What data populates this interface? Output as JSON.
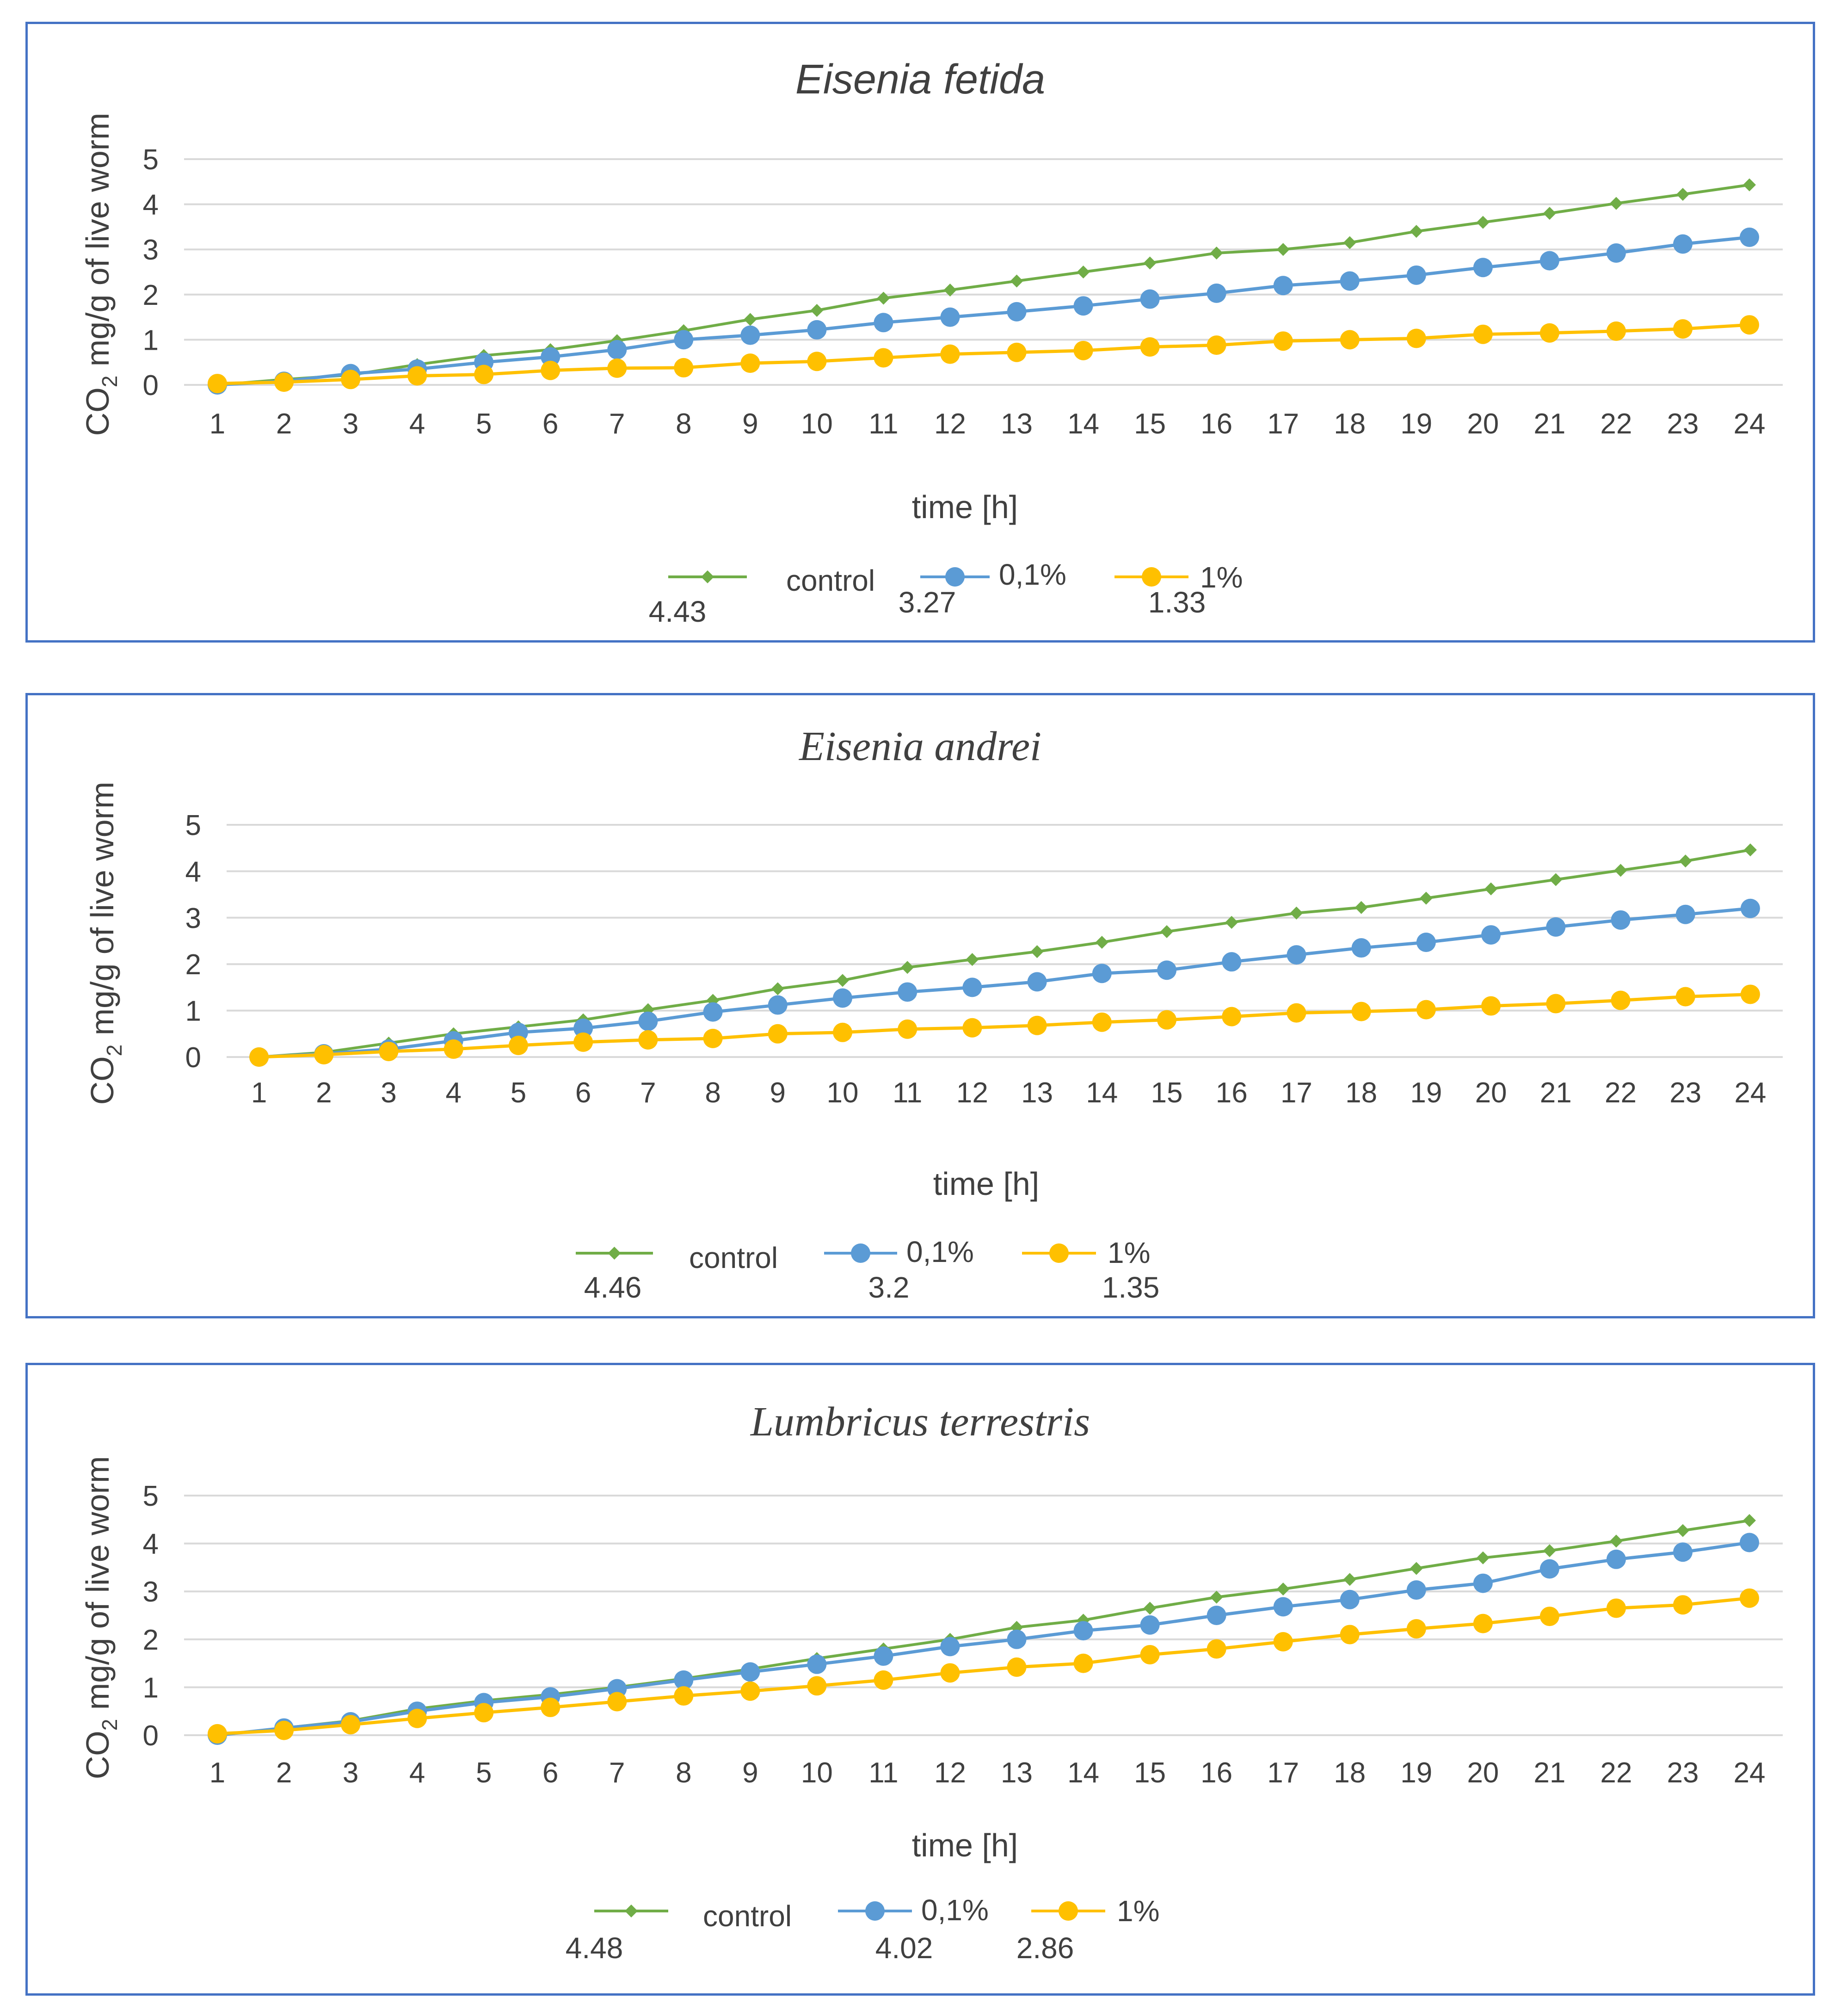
{
  "colors": {
    "control": "#70ad47",
    "c01": "#5b9bd5",
    "c1": "#ffc000",
    "border": "#4472c4"
  },
  "chart_data": [
    {
      "type": "line",
      "title": "Eisenia fetida",
      "xlabel": "time [h]",
      "ylabel_main": "CO",
      "ylabel_sub": "2",
      "ylabel_rest": " mg/g of live worm",
      "ylim": [
        0,
        5
      ],
      "yticks": [
        "0",
        "1",
        "2",
        "3",
        "4",
        "5"
      ],
      "categories": [
        "1",
        "2",
        "3",
        "4",
        "5",
        "6",
        "7",
        "8",
        "9",
        "10",
        "11",
        "12",
        "13",
        "14",
        "15",
        "16",
        "17",
        "18",
        "19",
        "20",
        "21",
        "22",
        "23",
        "24"
      ],
      "series": [
        {
          "name": "control",
          "final_value_label": "4.43",
          "values": [
            0,
            0.12,
            0.22,
            0.45,
            0.65,
            0.78,
            0.98,
            1.2,
            1.45,
            1.65,
            1.92,
            2.1,
            2.3,
            2.5,
            2.7,
            2.92,
            3.0,
            3.15,
            3.4,
            3.6,
            3.8,
            4.02,
            4.22,
            4.43
          ]
        },
        {
          "name": "0,1%",
          "final_value_label": "3.27",
          "values": [
            0,
            0.08,
            0.25,
            0.35,
            0.5,
            0.62,
            0.78,
            1.0,
            1.1,
            1.22,
            1.38,
            1.5,
            1.62,
            1.75,
            1.9,
            2.03,
            2.2,
            2.3,
            2.43,
            2.6,
            2.75,
            2.92,
            3.12,
            3.27
          ]
        },
        {
          "name": "1%",
          "final_value_label": "1.33",
          "values": [
            0.03,
            0.06,
            0.12,
            0.2,
            0.23,
            0.32,
            0.37,
            0.38,
            0.48,
            0.52,
            0.6,
            0.68,
            0.72,
            0.76,
            0.84,
            0.88,
            0.97,
            1.0,
            1.03,
            1.12,
            1.15,
            1.19,
            1.24,
            1.33
          ]
        }
      ]
    },
    {
      "type": "line",
      "title": "Eisenia andrei",
      "xlabel": "time [h]",
      "ylabel_main": "CO",
      "ylabel_sub": "2",
      "ylabel_rest": " mg/g of live worm",
      "ylim": [
        0,
        5
      ],
      "yticks": [
        "0",
        "1",
        "2",
        "3",
        "4",
        "5"
      ],
      "categories": [
        "1",
        "2",
        "3",
        "4",
        "5",
        "6",
        "7",
        "8",
        "9",
        "10",
        "11",
        "12",
        "13",
        "14",
        "15",
        "16",
        "17",
        "18",
        "19",
        "20",
        "21",
        "22",
        "23",
        "24"
      ],
      "series": [
        {
          "name": "control",
          "final_value_label": "4.46",
          "values": [
            0,
            0.1,
            0.3,
            0.5,
            0.65,
            0.8,
            1.02,
            1.22,
            1.47,
            1.65,
            1.93,
            2.1,
            2.27,
            2.47,
            2.7,
            2.9,
            3.1,
            3.22,
            3.42,
            3.62,
            3.82,
            4.02,
            4.22,
            4.46
          ]
        },
        {
          "name": "0,1%",
          "final_value_label": "3.2",
          "values": [
            0,
            0.07,
            0.17,
            0.35,
            0.53,
            0.62,
            0.77,
            0.97,
            1.12,
            1.27,
            1.4,
            1.5,
            1.62,
            1.8,
            1.87,
            2.05,
            2.2,
            2.35,
            2.47,
            2.63,
            2.8,
            2.95,
            3.07,
            3.2
          ]
        },
        {
          "name": "1%",
          "final_value_label": "1.35",
          "values": [
            0,
            0.05,
            0.12,
            0.17,
            0.25,
            0.32,
            0.37,
            0.4,
            0.5,
            0.53,
            0.6,
            0.63,
            0.68,
            0.75,
            0.8,
            0.87,
            0.95,
            0.98,
            1.02,
            1.1,
            1.15,
            1.22,
            1.3,
            1.35
          ]
        }
      ]
    },
    {
      "type": "line",
      "title": "Lumbricus terrestris",
      "xlabel": "time [h]",
      "ylabel_main": "CO",
      "ylabel_sub": "2",
      "ylabel_rest": " mg/g of live worm",
      "ylim": [
        0,
        5
      ],
      "yticks": [
        "0",
        "1",
        "2",
        "3",
        "4",
        "5"
      ],
      "categories": [
        "1",
        "2",
        "3",
        "4",
        "5",
        "6",
        "7",
        "8",
        "9",
        "10",
        "11",
        "12",
        "13",
        "14",
        "15",
        "16",
        "17",
        "18",
        "19",
        "20",
        "21",
        "22",
        "23",
        "24"
      ],
      "series": [
        {
          "name": "control",
          "final_value_label": "4.48",
          "values": [
            0,
            0.15,
            0.3,
            0.55,
            0.72,
            0.85,
            1.0,
            1.18,
            1.38,
            1.6,
            1.8,
            2.0,
            2.25,
            2.4,
            2.65,
            2.88,
            3.05,
            3.25,
            3.48,
            3.7,
            3.85,
            4.05,
            4.27,
            4.48
          ]
        },
        {
          "name": "0,1%",
          "final_value_label": "4.02",
          "values": [
            0,
            0.15,
            0.28,
            0.5,
            0.68,
            0.8,
            0.97,
            1.15,
            1.32,
            1.48,
            1.65,
            1.85,
            2.0,
            2.18,
            2.3,
            2.5,
            2.68,
            2.83,
            3.03,
            3.17,
            3.47,
            3.67,
            3.82,
            4.02
          ]
        },
        {
          "name": "1%",
          "final_value_label": "2.86",
          "values": [
            0.03,
            0.1,
            0.22,
            0.35,
            0.47,
            0.58,
            0.7,
            0.82,
            0.92,
            1.03,
            1.15,
            1.3,
            1.42,
            1.5,
            1.68,
            1.8,
            1.95,
            2.1,
            2.22,
            2.33,
            2.48,
            2.65,
            2.72,
            2.86
          ]
        }
      ]
    }
  ]
}
